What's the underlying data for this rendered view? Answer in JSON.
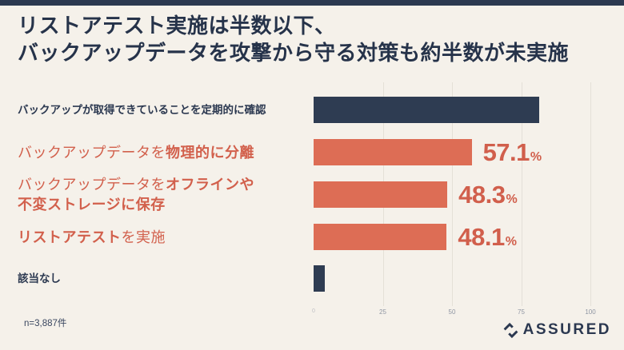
{
  "title": {
    "line1": "リストアテスト実施は半数以下、",
    "line2": "バックアップデータを攻撃から守る対策も約半数が未実施"
  },
  "rows": [
    {
      "bold": "バックアップが取得できていることを定期的に確認",
      "value_label": ""
    },
    {
      "pre": "バックアップデータを",
      "bold": "物理的に分離",
      "value_label": "57.1"
    },
    {
      "pre": "バックアップデータを",
      "bold1": "オフラインや",
      "bold2": "不変ストレージに保存",
      "value_label": "48.3"
    },
    {
      "bold": "リストアテスト",
      "post": "を実施",
      "value_label": "48.1"
    },
    {
      "text": "該当なし",
      "value_label": ""
    }
  ],
  "percent_sign": "%",
  "chart_data": {
    "type": "bar",
    "orientation": "horizontal",
    "title": "リストアテスト実施は半数以下、バックアップデータを攻撃から守る対策も約半数が未実施",
    "categories": [
      "バックアップが取得できていることを定期的に確認",
      "バックアップデータを物理的に分離",
      "バックアップデータをオフラインや不変ストレージに保存",
      "リストアテストを実施",
      "該当なし"
    ],
    "values": [
      81.4,
      57.1,
      48.3,
      48.1,
      4.0
    ],
    "value_labels": [
      "",
      "57.1%",
      "48.3%",
      "48.1%",
      ""
    ],
    "bar_colors": [
      "#2e3c52",
      "#dd6d55",
      "#dd6d55",
      "#dd6d55",
      "#2e3c52"
    ],
    "xlim": [
      0,
      100
    ],
    "xticks": [
      0,
      25,
      50,
      75,
      100
    ],
    "xtick_labels": [
      "0",
      "25",
      "50",
      "75",
      "100"
    ],
    "grid": "vertical",
    "legend": "none"
  },
  "footnote": "n=3,887件",
  "logo": {
    "text": "ASSURED"
  },
  "colors": {
    "background": "#f5f1ea",
    "navy": "#2e3c52",
    "orange_bar": "#dd6d55",
    "orange_text": "#d2604c",
    "gridline": "#e4e0d7"
  }
}
